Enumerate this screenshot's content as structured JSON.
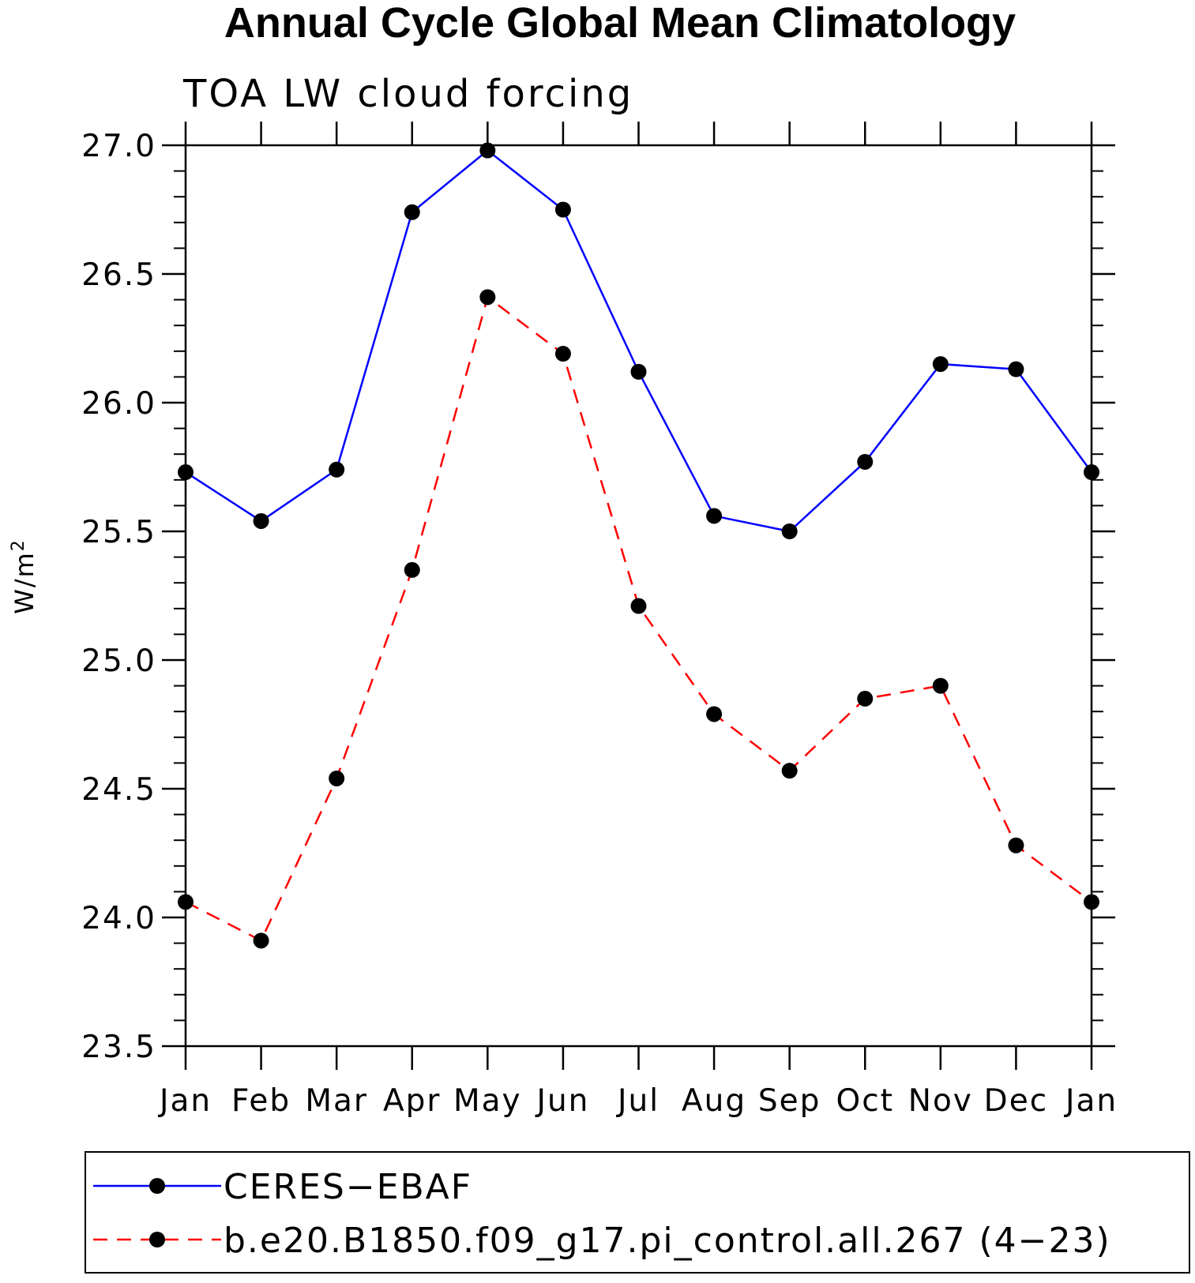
{
  "chart_data": {
    "type": "line",
    "title": "Annual Cycle Global Mean Climatology",
    "subtitle": "TOA LW cloud forcing",
    "xlabel": "",
    "ylabel": "W/m",
    "ylabel_superscript": "2",
    "categories": [
      "Jan",
      "Feb",
      "Mar",
      "Apr",
      "May",
      "Jun",
      "Jul",
      "Aug",
      "Sep",
      "Oct",
      "Nov",
      "Dec",
      "Jan"
    ],
    "ylim": [
      23.5,
      27.0
    ],
    "yticks": [
      "23.5",
      "24.0",
      "24.5",
      "25.0",
      "25.5",
      "26.0",
      "26.5",
      "27.0"
    ],
    "grid": false,
    "legend_position": "bottom",
    "series": [
      {
        "name": "CERES−EBAF",
        "color": "#0000ff",
        "dash": "solid",
        "values": [
          25.73,
          25.54,
          25.74,
          26.74,
          26.98,
          26.75,
          26.12,
          25.56,
          25.5,
          25.77,
          26.15,
          26.13,
          25.73
        ]
      },
      {
        "name": "b.e20.B1850.f09_g17.pi_control.all.267 (4−23)",
        "color": "#ff0000",
        "dash": "dashed",
        "values": [
          24.06,
          23.91,
          24.54,
          25.35,
          26.41,
          26.19,
          25.21,
          24.79,
          24.57,
          24.85,
          24.9,
          24.28,
          24.06
        ]
      }
    ],
    "marker_color": "#000000"
  }
}
